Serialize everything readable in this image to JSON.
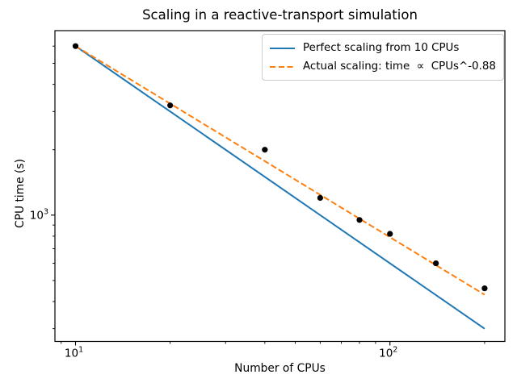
{
  "chart_data": {
    "type": "scatter",
    "title": "Scaling in a reactive-transport simulation",
    "xlabel": "Number of CPUs",
    "ylabel": "CPU time (s)",
    "xscale": "log",
    "yscale": "log",
    "xlim": [
      8.6,
      232
    ],
    "ylim": [
      262,
      7070
    ],
    "grid": false,
    "x_major_ticks": [
      {
        "value": 10,
        "base": "10",
        "exp": "1"
      },
      {
        "value": 100,
        "base": "10",
        "exp": "2"
      }
    ],
    "x_minor_ticks": [
      9,
      20,
      30,
      40,
      50,
      60,
      70,
      80,
      90,
      200
    ],
    "y_major_ticks": [
      {
        "value": 1000,
        "base": "10",
        "exp": "3"
      }
    ],
    "y_minor_ticks": [
      300,
      400,
      500,
      600,
      700,
      800,
      900,
      2000,
      3000,
      4000,
      5000,
      6000
    ],
    "series": [
      {
        "name": "perfect-scaling-line",
        "type": "line",
        "style": "solid",
        "color": "#1f77b4",
        "points": [
          [
            10,
            6000
          ],
          [
            200,
            300
          ]
        ]
      },
      {
        "name": "actual-scaling-fit-line",
        "type": "line",
        "style": "dashed",
        "color": "#ff7f0e",
        "points": [
          [
            10,
            6000
          ],
          [
            200,
            430
          ]
        ]
      },
      {
        "name": "measured-cpu-times",
        "type": "scatter",
        "color": "#000000",
        "marker_radius": 3.6,
        "points": [
          [
            10,
            6000
          ],
          [
            20,
            3200
          ],
          [
            40,
            2000
          ],
          [
            60,
            1200
          ],
          [
            80,
            950
          ],
          [
            100,
            820
          ],
          [
            140,
            600
          ],
          [
            200,
            460
          ]
        ]
      }
    ],
    "legend": {
      "position": "upper right",
      "entries": [
        {
          "label": "Perfect scaling from 10 CPUs",
          "color": "#1f77b4",
          "style": "solid"
        },
        {
          "label": "Actual scaling: time  ∝  CPUs^-0.88",
          "color": "#ff7f0e",
          "style": "dashed"
        }
      ]
    },
    "colors": {
      "perfect_line": "#1f77b4",
      "fit_line": "#ff7f0e",
      "markers": "#000000",
      "spines": "#000000",
      "legend_border": "#cccccc"
    }
  }
}
